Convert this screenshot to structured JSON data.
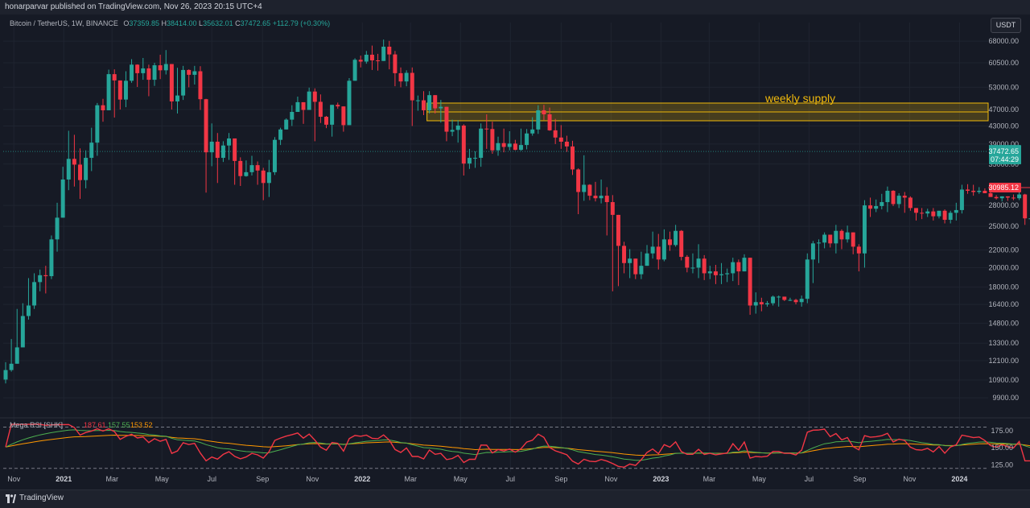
{
  "header": {
    "publisher": "honarparvar published on TradingView.com, Nov 26, 2023 20:15 UTC+4"
  },
  "legend": {
    "symbol": "Bitcoin / TetherUS, 1W, BINANCE",
    "open_label": "O",
    "open": "37359.85",
    "high_label": "H",
    "high": "38414.00",
    "low_label": "L",
    "low": "35632.01",
    "close_label": "C",
    "close": "37472.65",
    "change": "+112.79 (+0.30%)"
  },
  "currency_button": "USDT",
  "annotation": {
    "text": "weekly supply",
    "color": "#f0b90b"
  },
  "price_tags": {
    "last_price": "37472.65",
    "countdown": "07:44:29",
    "level": "30985.12"
  },
  "indicator": {
    "name": "Mega RSI [SHK]",
    "values": [
      "187.61",
      "157.55",
      "153.52"
    ],
    "colors": [
      "#f23645",
      "#4caf50",
      "#ff9800"
    ],
    "ticks": [
      "175.00",
      "150.00",
      "125.00"
    ]
  },
  "footer": {
    "brand": "TradingView"
  },
  "colors": {
    "up": "#26a69a",
    "down": "#f23645",
    "background": "#161a25",
    "supply_zone": "#f0b90b",
    "demand_zone": "#4caf50"
  },
  "chart_data": {
    "type": "candlestick",
    "title": "Bitcoin / TetherUS, 1W, BINANCE",
    "y_scale": "log",
    "ylim": [
      9000,
      72000
    ],
    "y_ticks": [
      "68000.00",
      "60500.00",
      "53000.00",
      "47000.00",
      "43000.00",
      "39000.00",
      "35000.00",
      "28000.00",
      "25000.00",
      "22000.00",
      "20000.00",
      "18000.00",
      "16400.00",
      "14800.00",
      "13300.00",
      "12100.00",
      "10900.00",
      "9900.00"
    ],
    "x_ticks": [
      "Nov",
      "2021",
      "Mar",
      "May",
      "Jul",
      "Sep",
      "Nov",
      "2022",
      "Mar",
      "May",
      "Jul",
      "Sep",
      "Nov",
      "2023",
      "Mar",
      "May",
      "Jul",
      "Sep",
      "Nov",
      "2024"
    ],
    "x_range": [
      "2020-10-19",
      "2024-02-05"
    ],
    "x_tick_dates": [
      "2020-11-01",
      "2021-01-01",
      "2021-03-01",
      "2021-05-01",
      "2021-07-01",
      "2021-09-01",
      "2021-11-01",
      "2022-01-01",
      "2022-03-01",
      "2022-05-01",
      "2022-07-01",
      "2022-09-01",
      "2022-11-01",
      "2023-01-01",
      "2023-03-01",
      "2023-05-01",
      "2023-07-01",
      "2023-09-01",
      "2023-11-01",
      "2024-01-01"
    ],
    "start_date": "2020-10-19",
    "weekly_close": [
      11500,
      11900,
      13000,
      15400,
      16300,
      18500,
      19200,
      19100,
      23300,
      26200,
      32200,
      36000,
      34900,
      32100,
      36200,
      39300,
      48100,
      46800,
      56900,
      55000,
      49600,
      54900,
      59900,
      57200,
      58700,
      55200,
      59700,
      58100,
      60100,
      49100,
      50700,
      58200,
      56700,
      57800,
      49700,
      37300,
      39500,
      36200,
      38700,
      40200,
      35600,
      32800,
      33500,
      34800,
      33800,
      31600,
      33500,
      39900,
      42200,
      44500,
      46400,
      48900,
      46900,
      51800,
      49000,
      45200,
      43300,
      48200,
      47800,
      43200,
      54900,
      61500,
      60900,
      63200,
      61300,
      61100,
      66000,
      63300,
      57200,
      54700,
      57300,
      49400,
      49400,
      46800,
      50800,
      47300,
      47700,
      41700,
      42100,
      43100,
      35100,
      36200,
      36200,
      42400,
      42300,
      37700,
      39200,
      38400,
      39100,
      37800,
      38800,
      41300,
      42200,
      46800,
      45800,
      42000,
      40400,
      39500,
      38500,
      34000,
      30100,
      31300,
      29500,
      29100,
      29500,
      28500,
      26600,
      22500,
      20500,
      21000,
      19300,
      20200,
      21600,
      22400,
      20900,
      23300,
      22600,
      24400,
      21200,
      20000,
      20000,
      21000,
      19400,
      19600,
      19200,
      19300,
      19400,
      20600,
      19600,
      21100,
      16300,
      16600,
      16400,
      16500,
      17100,
      17100,
      16800,
      16800,
      16600,
      16900,
      20900,
      22800,
      22900,
      23900,
      22800,
      24400,
      23300,
      24200,
      22400,
      21600,
      28000,
      27500,
      27900,
      28500,
      30300,
      28200,
      29500,
      29200,
      27600,
      26900,
      26800,
      27100,
      26400,
      27200,
      25900,
      26900,
      27300,
      30500,
      30300,
      30100,
      30300,
      29900,
      29300,
      29100,
      29400,
      29200,
      29100,
      29700,
      26100,
      26100,
      25900,
      25800,
      26100,
      26900,
      26600,
      27900,
      28700,
      34400,
      34500,
      36900,
      37300,
      37500,
      37400
    ],
    "weekly_low": [
      10700,
      11400,
      11900,
      13000,
      15100,
      16000,
      17600,
      17400,
      18800,
      21800,
      27800,
      30400,
      31000,
      29000,
      30700,
      33700,
      36600,
      44000,
      46800,
      45000,
      47000,
      47600,
      54300,
      53100,
      55200,
      50500,
      53400,
      55400,
      56800,
      47000,
      46000,
      49500,
      53000,
      53800,
      46900,
      30000,
      34600,
      31600,
      35400,
      35800,
      31300,
      31100,
      32700,
      32900,
      31300,
      28800,
      29300,
      33000,
      38800,
      43000,
      43000,
      46700,
      43500,
      47100,
      39600,
      43700,
      42500,
      40600,
      47200,
      41700,
      46900,
      55000,
      59000,
      60200,
      58200,
      58000,
      61500,
      58400,
      53300,
      53000,
      53300,
      43000,
      46700,
      45600,
      46000,
      46000,
      43800,
      39600,
      40700,
      39300,
      32900,
      34100,
      34300,
      34500,
      38000,
      37000,
      36600,
      37300,
      37700,
      37700,
      37600,
      37900,
      40800,
      41200,
      44400,
      41900,
      39000,
      38000,
      37400,
      33000,
      26700,
      28700,
      28800,
      28600,
      28300,
      23800,
      17600,
      18100,
      19400,
      18900,
      18800,
      18800,
      20200,
      21000,
      19800,
      20700,
      21900,
      22400,
      20800,
      19500,
      19400,
      18900,
      18700,
      18800,
      18300,
      18300,
      18500,
      18600,
      18200,
      19700,
      15500,
      15600,
      15800,
      16200,
      16300,
      16200,
      16700,
      16700,
      16400,
      16200,
      16500,
      18400,
      20500,
      22200,
      22300,
      21600,
      22100,
      22900,
      21500,
      19600,
      20000,
      26300,
      27000,
      27400,
      27000,
      27900,
      27600,
      26900,
      27200,
      25800,
      26000,
      26300,
      25800,
      26100,
      25400,
      25400,
      25800,
      26800,
      29800,
      29500,
      29800,
      30000,
      29300,
      28900,
      28600,
      28700,
      28800,
      28800,
      25200,
      25700,
      25400,
      24900,
      25600,
      25900,
      26000,
      27200,
      27500,
      28400,
      33500,
      34100,
      34700,
      35500,
      35600
    ],
    "weekly_high": [
      12000,
      13600,
      16000,
      16500,
      18900,
      19400,
      19800,
      20200,
      23800,
      28400,
      34500,
      41900,
      41000,
      38100,
      37700,
      42600,
      48700,
      49800,
      58300,
      58400,
      55000,
      57800,
      61700,
      60000,
      62100,
      59900,
      60500,
      63200,
      64800,
      56200,
      58900,
      59500,
      58400,
      59500,
      59400,
      49800,
      43600,
      41400,
      39600,
      41400,
      36700,
      36300,
      35700,
      36600,
      35500,
      34300,
      35800,
      40500,
      42600,
      44800,
      48100,
      50400,
      48000,
      52900,
      52700,
      51000,
      45400,
      48200,
      48800,
      47600,
      55700,
      62000,
      62900,
      64500,
      66400,
      63500,
      68600,
      68100,
      64500,
      59000,
      58100,
      59000,
      50700,
      51900,
      51900,
      48600,
      49500,
      46700,
      44500,
      44400,
      43400,
      38000,
      37500,
      43600,
      45800,
      44000,
      40600,
      42400,
      41800,
      39900,
      42400,
      42300,
      45100,
      48100,
      48200,
      47500,
      44700,
      43200,
      40800,
      39700,
      34200,
      36700,
      31400,
      31800,
      32200,
      30900,
      29600,
      23300,
      23000,
      22100,
      20800,
      21800,
      22600,
      24300,
      24000,
      24600,
      24300,
      25200,
      24500,
      21400,
      21600,
      22700,
      21400,
      20200,
      20300,
      20500,
      19900,
      21100,
      20900,
      21500,
      20600,
      17500,
      17000,
      16700,
      17200,
      17200,
      17000,
      17000,
      16900,
      17200,
      21600,
      23100,
      23300,
      24200,
      23800,
      25200,
      24600,
      25100,
      24200,
      22700,
      28800,
      29200,
      28900,
      29800,
      31000,
      30400,
      29900,
      30100,
      29400,
      27500,
      27600,
      27500,
      27600,
      27200,
      27400,
      27200,
      28400,
      31300,
      31400,
      31300,
      30900,
      30700,
      30400,
      29600,
      29400,
      29400,
      29700,
      30300,
      29800,
      26200,
      26800,
      26000,
      27400,
      27300,
      26900,
      28600,
      28900,
      35300,
      35200,
      37900,
      38400,
      37900,
      38400
    ]
  }
}
